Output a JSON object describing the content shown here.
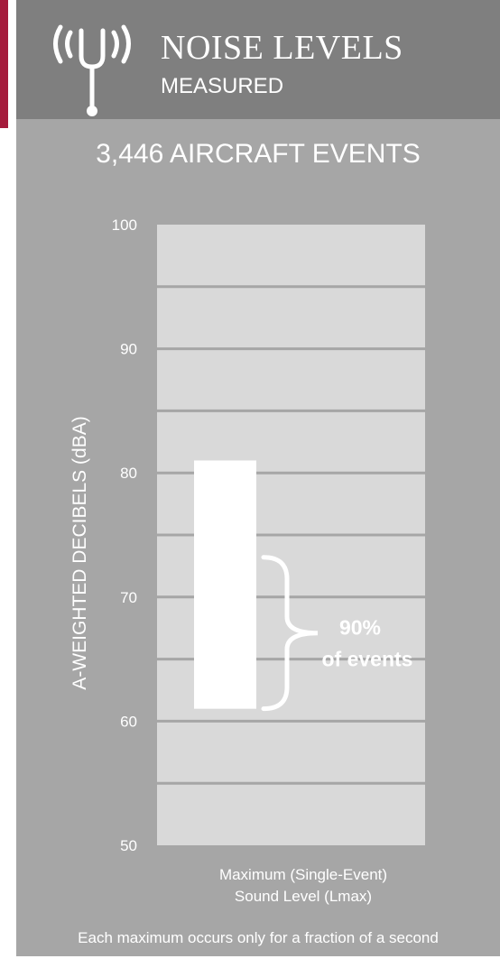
{
  "header": {
    "title": "NOISE LEVELS",
    "subtitle": "MEASURED",
    "icon": "tuning-fork-sound-icon"
  },
  "event_count_label": "3,446 AIRCRAFT EVENTS",
  "colors": {
    "accent": "#a51c3c",
    "header_bg": "#7f7f7f",
    "panel_bg": "#a6a6a6",
    "plot_bg": "#d9d9d9",
    "bar": "#ffffff",
    "text": "#ffffff"
  },
  "chart_data": {
    "type": "bar",
    "ylabel": "A-WEIGHTED DECIBELS (dBA)",
    "ylim": [
      50,
      100
    ],
    "yticks": [
      50,
      60,
      70,
      80,
      90,
      100
    ],
    "gridlines": [
      55,
      60,
      65,
      70,
      75,
      80,
      85,
      90,
      95
    ],
    "grid": true,
    "categories": [
      "Maximum  (Single-Event)",
      "Sound Level  (Lmax)"
    ],
    "range_bar": {
      "low": 61,
      "high": 81
    },
    "annotation": {
      "range_low": 61,
      "range_high": 73.2,
      "line1": "90%",
      "line2": "of events"
    }
  },
  "footnote": "Each maximum  occurs only for a fraction of a second"
}
